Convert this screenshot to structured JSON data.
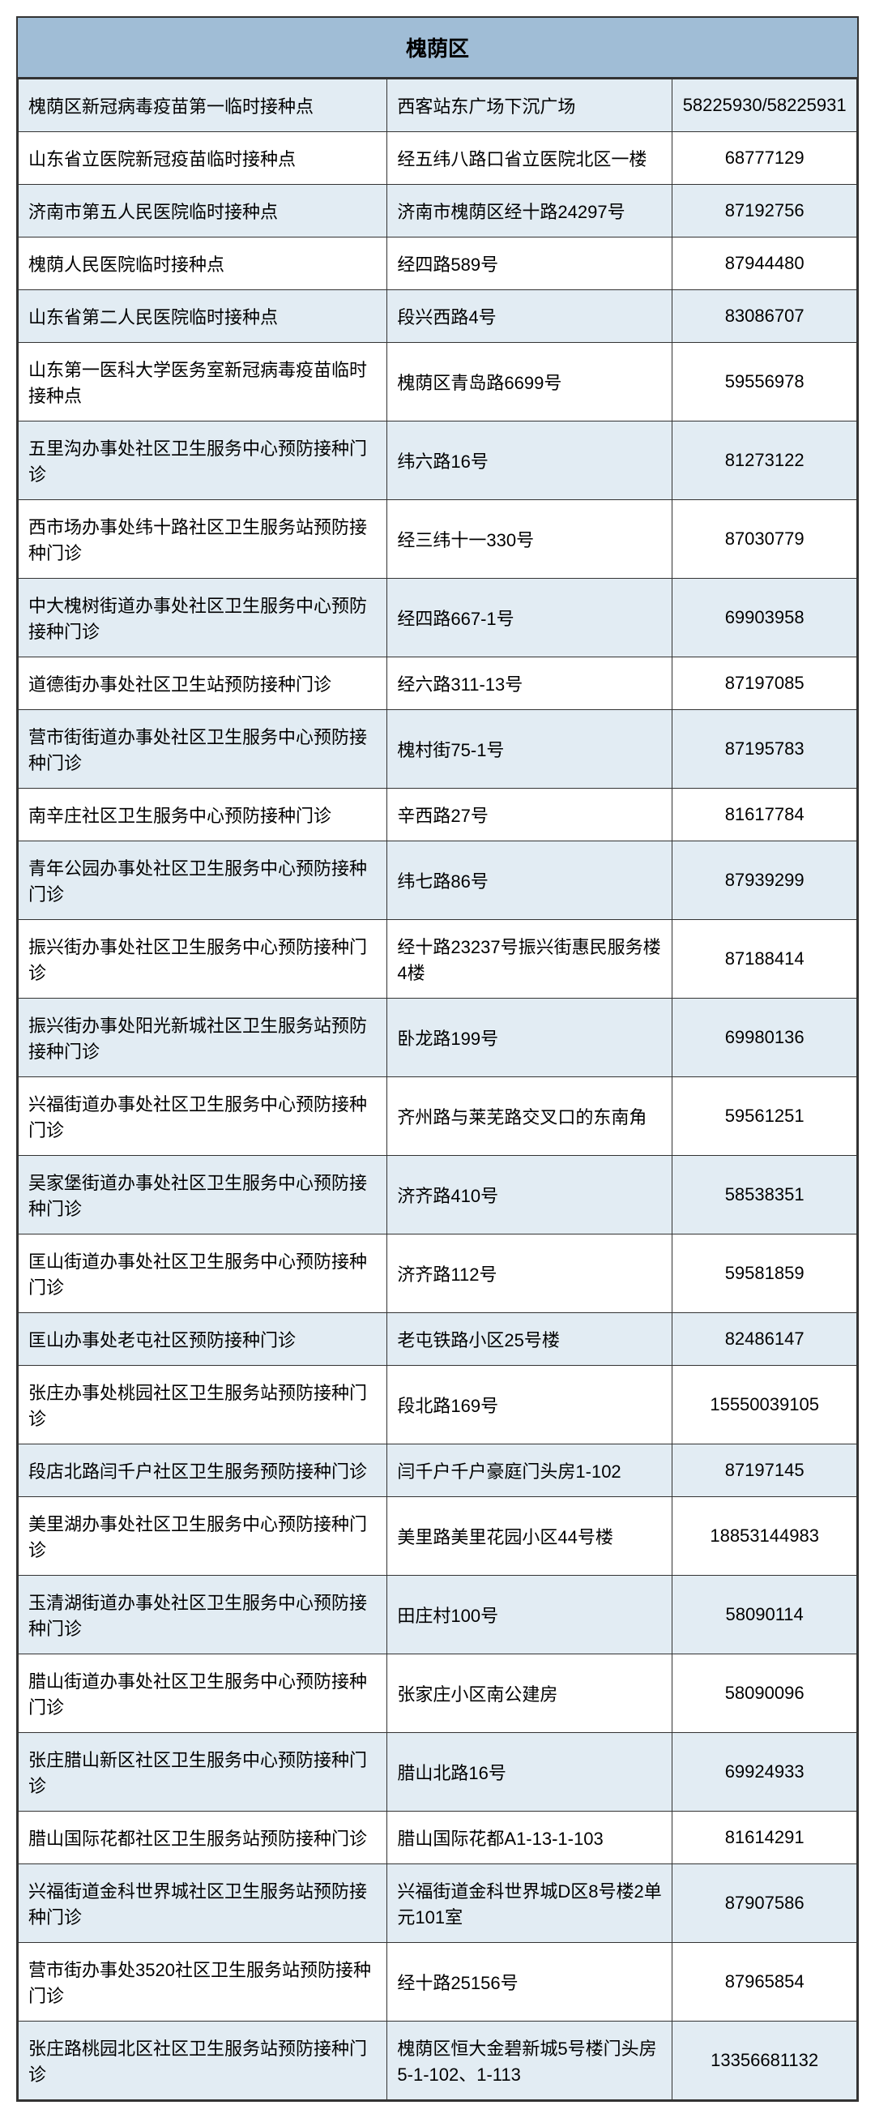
{
  "table": {
    "header_title": "槐荫区",
    "background_color": "#ffffff",
    "header_bg_color": "#a0bdd6",
    "even_row_bg_color": "#e2ecf3",
    "odd_row_bg_color": "#ffffff",
    "border_color": "#333333",
    "text_color": "#000000",
    "header_fontsize": 26,
    "cell_fontsize": 22,
    "columns": [
      "name",
      "address",
      "phone"
    ],
    "column_widths": [
      "44%",
      "34%",
      "22%"
    ],
    "column_align": [
      "left",
      "left",
      "center"
    ],
    "rows": [
      {
        "name": "槐荫区新冠病毒疫苗第一临时接种点",
        "address": "西客站东广场下沉广场",
        "phone": "58225930/58225931"
      },
      {
        "name": "山东省立医院新冠疫苗临时接种点",
        "address": "经五纬八路口省立医院北区一楼",
        "phone": "68777129"
      },
      {
        "name": "济南市第五人民医院临时接种点",
        "address": "济南市槐荫区经十路24297号",
        "phone": "87192756"
      },
      {
        "name": "槐荫人民医院临时接种点",
        "address": "经四路589号",
        "phone": "87944480"
      },
      {
        "name": "山东省第二人民医院临时接种点",
        "address": "段兴西路4号",
        "phone": "83086707"
      },
      {
        "name": "山东第一医科大学医务室新冠病毒疫苗临时接种点",
        "address": "槐荫区青岛路6699号",
        "phone": "59556978"
      },
      {
        "name": "五里沟办事处社区卫生服务中心预防接种门诊",
        "address": "纬六路16号",
        "phone": "81273122"
      },
      {
        "name": "西市场办事处纬十路社区卫生服务站预防接种门诊",
        "address": "经三纬十一330号",
        "phone": "87030779"
      },
      {
        "name": "中大槐树街道办事处社区卫生服务中心预防接种门诊",
        "address": "经四路667-1号",
        "phone": "69903958"
      },
      {
        "name": "道德街办事处社区卫生站预防接种门诊",
        "address": "经六路311-13号",
        "phone": "87197085"
      },
      {
        "name": "营市街街道办事处社区卫生服务中心预防接种门诊",
        "address": "槐村街75-1号",
        "phone": "87195783"
      },
      {
        "name": "南辛庄社区卫生服务中心预防接种门诊",
        "address": "辛西路27号",
        "phone": "81617784"
      },
      {
        "name": "青年公园办事处社区卫生服务中心预防接种门诊",
        "address": "纬七路86号",
        "phone": "87939299"
      },
      {
        "name": "振兴街办事处社区卫生服务中心预防接种门诊",
        "address": "经十路23237号振兴街惠民服务楼4楼",
        "phone": "87188414"
      },
      {
        "name": "振兴街办事处阳光新城社区卫生服务站预防接种门诊",
        "address": "卧龙路199号",
        "phone": "69980136"
      },
      {
        "name": "兴福街道办事处社区卫生服务中心预防接种门诊",
        "address": "齐州路与莱芜路交叉口的东南角",
        "phone": "59561251"
      },
      {
        "name": "吴家堡街道办事处社区卫生服务中心预防接种门诊",
        "address": "济齐路410号",
        "phone": "58538351"
      },
      {
        "name": "匡山街道办事处社区卫生服务中心预防接种门诊",
        "address": "济齐路112号",
        "phone": "59581859"
      },
      {
        "name": "匡山办事处老屯社区预防接种门诊",
        "address": "老屯铁路小区25号楼",
        "phone": "82486147"
      },
      {
        "name": "张庄办事处桃园社区卫生服务站预防接种门诊",
        "address": "段北路169号",
        "phone": "15550039105"
      },
      {
        "name": "段店北路闫千户社区卫生服务预防接种门诊",
        "address": "闫千户千户豪庭门头房1-102",
        "phone": "87197145"
      },
      {
        "name": "美里湖办事处社区卫生服务中心预防接种门诊",
        "address": "美里路美里花园小区44号楼",
        "phone": "18853144983"
      },
      {
        "name": "玉清湖街道办事处社区卫生服务中心预防接种门诊",
        "address": "田庄村100号",
        "phone": "58090114"
      },
      {
        "name": "腊山街道办事处社区卫生服务中心预防接种门诊",
        "address": "张家庄小区南公建房",
        "phone": "58090096"
      },
      {
        "name": "张庄腊山新区社区卫生服务中心预防接种门诊",
        "address": "腊山北路16号",
        "phone": "69924933"
      },
      {
        "name": "腊山国际花都社区卫生服务站预防接种门诊",
        "address": "腊山国际花都A1-13-1-103",
        "phone": "81614291"
      },
      {
        "name": "兴福街道金科世界城社区卫生服务站预防接种门诊",
        "address": "兴福街道金科世界城D区8号楼2单元101室",
        "phone": "87907586"
      },
      {
        "name": "营市街办事处3520社区卫生服务站预防接种门诊",
        "address": "经十路25156号",
        "phone": "87965854"
      },
      {
        "name": "张庄路桃园北区社区卫生服务站预防接种门诊",
        "address": "槐荫区恒大金碧新城5号楼门头房5-1-102、1-113",
        "phone": "13356681132"
      }
    ]
  }
}
